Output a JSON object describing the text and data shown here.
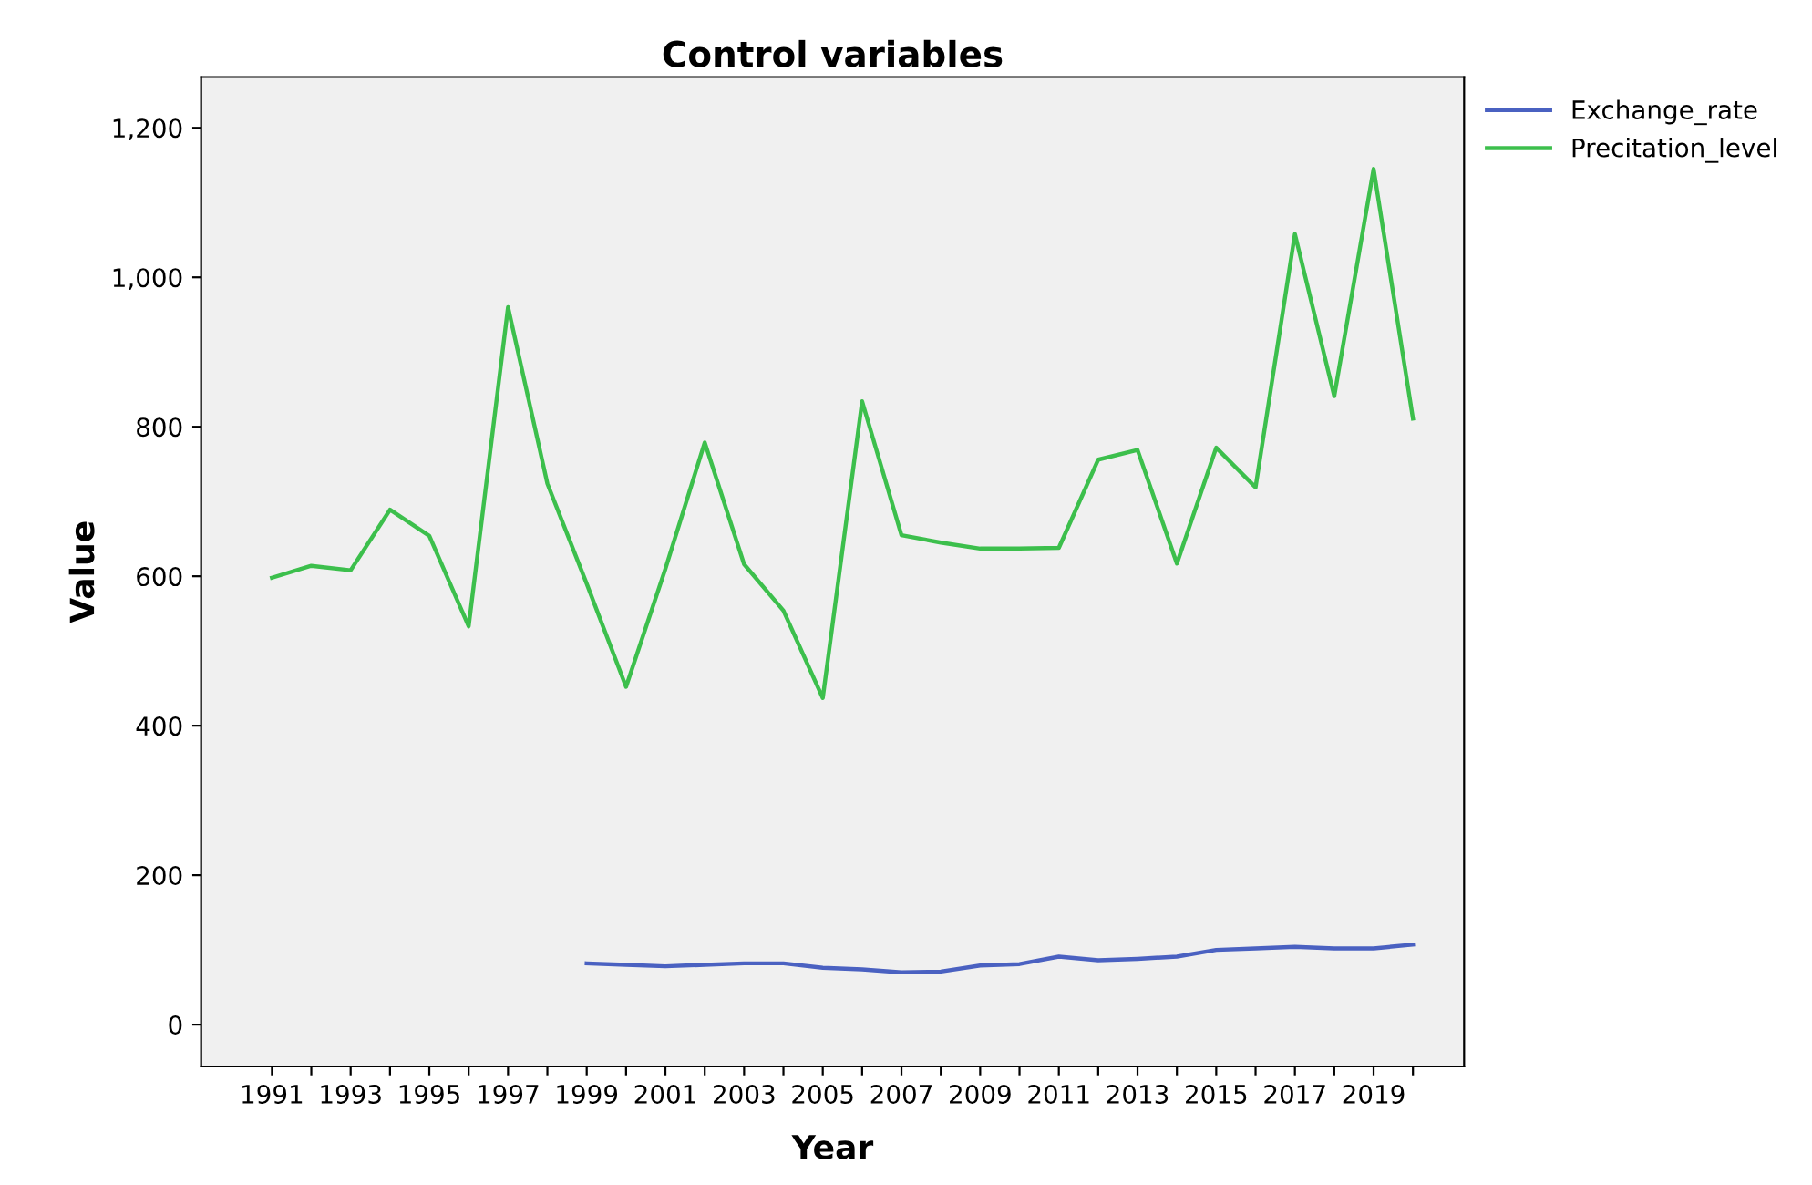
{
  "chart_data": {
    "type": "line",
    "title": "Control variables",
    "xlabel": "Year",
    "ylabel": "Value",
    "x": [
      1991,
      1992,
      1993,
      1994,
      1995,
      1996,
      1997,
      1998,
      1999,
      2000,
      2001,
      2002,
      2003,
      2004,
      2005,
      2006,
      2007,
      2008,
      2009,
      2010,
      2011,
      2012,
      2013,
      2014,
      2015,
      2016,
      2017,
      2018,
      2019,
      2020
    ],
    "series": [
      {
        "name": "Exchange_rate",
        "color": "#4a61c1",
        "values": [
          null,
          null,
          null,
          null,
          null,
          null,
          null,
          null,
          82,
          80,
          78,
          80,
          82,
          82,
          76,
          74,
          70,
          71,
          79,
          81,
          91,
          86,
          88,
          91,
          100,
          102,
          104,
          102,
          102,
          107
        ]
      },
      {
        "name": "Precitation_level",
        "color": "#3cbf4c",
        "values": [
          598,
          614,
          608,
          689,
          654,
          533,
          960,
          724,
          590,
          452,
          610,
          779,
          616,
          554,
          437,
          834,
          655,
          645,
          637,
          637,
          638,
          756,
          769,
          617,
          772,
          719,
          1058,
          841,
          1145,
          811
        ]
      }
    ],
    "xlim": [
      1989.2,
      2021.3
    ],
    "xticks": [
      1991,
      {
        "value": 1992,
        "label": null
      },
      1993,
      {
        "value": 1994,
        "label": null
      },
      1995,
      {
        "value": 1996,
        "label": null
      },
      1997,
      {
        "value": 1998,
        "label": null
      },
      1999,
      {
        "value": 2000,
        "label": null
      },
      2001,
      {
        "value": 2002,
        "label": null
      },
      2003,
      {
        "value": 2004,
        "label": null
      },
      2005,
      {
        "value": 2006,
        "label": null
      },
      2007,
      {
        "value": 2008,
        "label": null
      },
      2009,
      {
        "value": 2010,
        "label": null
      },
      2011,
      {
        "value": 2012,
        "label": null
      },
      2013,
      {
        "value": 2014,
        "label": null
      },
      2015,
      {
        "value": 2016,
        "label": null
      },
      2017,
      {
        "value": 2018,
        "label": null
      },
      2019,
      {
        "value": 2020,
        "label": null
      }
    ],
    "ylim": [
      -56,
      1268
    ],
    "yticks": [
      {
        "value": 0,
        "label": "0"
      },
      {
        "value": 200,
        "label": "200"
      },
      {
        "value": 400,
        "label": "400"
      },
      {
        "value": 600,
        "label": "600"
      },
      {
        "value": 800,
        "label": "800"
      },
      {
        "value": 1000,
        "label": "1,000"
      },
      {
        "value": 1200,
        "label": "1,200"
      }
    ],
    "grid": false,
    "legend": "top right",
    "line_style": "solid",
    "marker": "none"
  }
}
